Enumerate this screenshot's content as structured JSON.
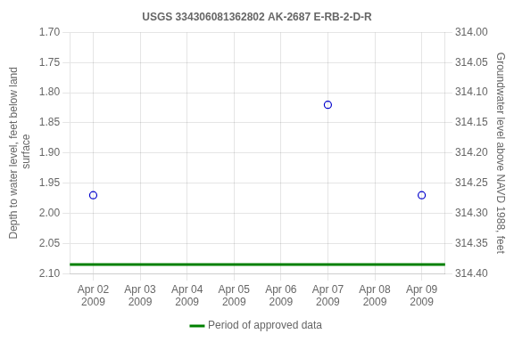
{
  "chart_data": {
    "type": "scatter",
    "title": "USGS 334306081362802 AK-2687 E-RB-2-D-R",
    "ylabel": "Depth to water level, feet below land\n surface",
    "y2label": "Groundwater level above NAVD 1988, feet",
    "xlim": [
      1.5,
      9.5
    ],
    "xticks": [
      {
        "value": 2,
        "label": "Apr 02\n2009"
      },
      {
        "value": 3,
        "label": "Apr 03\n2009"
      },
      {
        "value": 4,
        "label": "Apr 04\n2009"
      },
      {
        "value": 5,
        "label": "Apr 05\n2009"
      },
      {
        "value": 6,
        "label": "Apr 06\n2009"
      },
      {
        "value": 7,
        "label": "Apr 07\n2009"
      },
      {
        "value": 8,
        "label": "Apr 08\n2009"
      },
      {
        "value": 9,
        "label": "Apr 09\n2009"
      }
    ],
    "ylim": [
      2.1,
      1.7
    ],
    "yticks": [
      {
        "value": 1.7,
        "label": "1.70"
      },
      1.75,
      {
        "value": 1.8,
        "label": "1.80"
      },
      1.85,
      {
        "value": 1.9,
        "label": "1.90"
      },
      1.95,
      {
        "value": 2.0,
        "label": "2.00"
      },
      2.05,
      {
        "value": 2.1,
        "label": "2.10"
      }
    ],
    "y2lim": [
      314.4,
      314.0
    ],
    "y2ticks": [
      {
        "value": 314.0,
        "label": "314.00"
      },
      314.05,
      {
        "value": 314.1,
        "label": "314.10"
      },
      314.15,
      {
        "value": 314.2,
        "label": "314.20"
      },
      314.25,
      {
        "value": 314.3,
        "label": "314.30"
      },
      314.35,
      {
        "value": 314.4,
        "label": "314.40"
      }
    ],
    "grid": true,
    "legend": "bottom",
    "series": [
      {
        "type": "line",
        "name": "Period of approved data",
        "color": "#008000",
        "line_style": "solid",
        "x": [
          1.5,
          9.5
        ],
        "values": [
          2.085,
          2.085
        ]
      },
      {
        "type": "scatter",
        "color": "#0000cc",
        "marker": "circle",
        "x": [
          2,
          7,
          9
        ],
        "values": [
          1.97,
          1.82,
          1.97
        ]
      }
    ]
  }
}
